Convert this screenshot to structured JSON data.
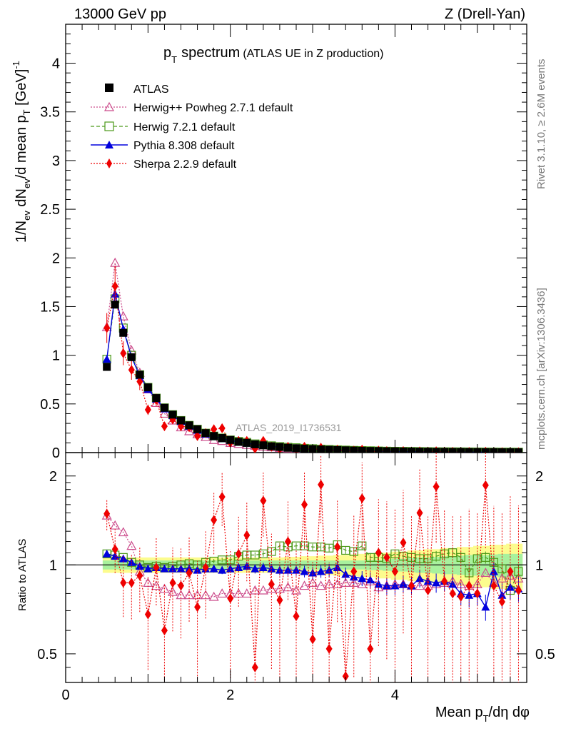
{
  "header": {
    "left": "13000 GeV pp",
    "right": "Z (Drell-Yan)"
  },
  "side_text": {
    "rivet": "Rivet 3.1.10, ≥ 2.6M events",
    "mcplots": "mcplots.cern.ch [arXiv:1306.3436]"
  },
  "watermark": "ATLAS_2019_I1736531",
  "colors": {
    "atlas": "#000000",
    "herwigpp": "#cc4c8c",
    "herwig7": "#4c9a1a",
    "pythia": "#0000dd",
    "sherpa": "#ee0000",
    "band_inner": "#9ef09e",
    "band_outer": "#fbfb7a"
  },
  "chart_data": [
    {
      "type": "line",
      "panel": "main",
      "title_main": "p",
      "title_sub": "T",
      "title_word": "spectrum",
      "title_note": "(ATLAS UE in Z production)",
      "ylabel": "1/N_ev dN_ev/d mean p_T [GeV]^-1",
      "ylabel_parts": {
        "a": "1/N",
        "a_sub": "ev",
        "b": " dN",
        "b_sub": "ev",
        "c": "/d mean p",
        "c_sub": "T",
        "d": " [GeV]",
        "d_sup": "-1"
      },
      "xlim": [
        0,
        5.6
      ],
      "ylim": [
        0,
        4.4
      ],
      "yticks": [
        0,
        0.5,
        1,
        1.5,
        2,
        2.5,
        3,
        3.5,
        4
      ],
      "ytick_labels": [
        "0",
        "0.5",
        "1",
        "1.5",
        "2",
        "2.5",
        "3",
        "3.5",
        "4"
      ],
      "legend": [
        "ATLAS",
        "Herwig++ Powheg 2.7.1 default",
        "Herwig 7.2.1 default",
        "Pythia 8.308 default",
        "Sherpa 2.2.9 default"
      ],
      "x": [
        0.5,
        0.6,
        0.7,
        0.8,
        0.9,
        1.0,
        1.1,
        1.2,
        1.3,
        1.4,
        1.5,
        1.6,
        1.7,
        1.8,
        1.9,
        2.0,
        2.1,
        2.2,
        2.3,
        2.4,
        2.5,
        2.6,
        2.7,
        2.8,
        2.9,
        3.0,
        3.1,
        3.2,
        3.3,
        3.4,
        3.5,
        3.6,
        3.7,
        3.8,
        3.9,
        4.0,
        4.1,
        4.2,
        4.3,
        4.4,
        4.5,
        4.6,
        4.7,
        4.8,
        4.9,
        5.0,
        5.1,
        5.2,
        5.3,
        5.4,
        5.5
      ],
      "atlas": [
        0.88,
        1.52,
        1.23,
        0.98,
        0.8,
        0.67,
        0.56,
        0.46,
        0.39,
        0.33,
        0.28,
        0.24,
        0.2,
        0.17,
        0.15,
        0.13,
        0.11,
        0.1,
        0.085,
        0.075,
        0.065,
        0.058,
        0.05,
        0.045,
        0.04,
        0.036,
        0.032,
        0.029,
        0.026,
        0.023,
        0.021,
        0.019,
        0.017,
        0.016,
        0.014,
        0.013,
        0.012,
        0.011,
        0.01,
        0.009,
        0.008,
        0.0075,
        0.007,
        0.0065,
        0.006,
        0.0055,
        0.005,
        0.0046,
        0.0042,
        0.0039,
        0.0036
      ],
      "series": [
        {
          "name": "Herwig++ Powheg 2.7.1 default",
          "values": [
            1.29,
            1.95,
            1.4,
            1.05,
            0.82,
            0.65,
            0.51,
            0.4,
            0.33,
            0.26,
            0.22,
            0.19,
            0.16,
            0.13,
            0.12,
            0.1,
            0.09,
            0.08,
            0.07,
            0.06,
            0.055,
            0.048,
            0.042,
            0.037,
            0.033,
            0.03,
            0.027,
            0.024,
            0.022,
            0.02,
            0.018,
            0.016,
            0.015,
            0.013,
            0.012,
            0.011,
            0.01,
            0.009,
            0.008,
            0.0075,
            0.007,
            0.0065,
            0.006,
            0.0055,
            0.005,
            0.0047,
            0.0044,
            0.004,
            0.0037,
            0.0034,
            0.0031
          ]
        },
        {
          "name": "Herwig 7.2.1 default",
          "values": [
            0.96,
            1.58,
            1.28,
            1.0,
            0.8,
            0.67,
            0.56,
            0.46,
            0.39,
            0.33,
            0.28,
            0.24,
            0.2,
            0.17,
            0.15,
            0.13,
            0.115,
            0.105,
            0.09,
            0.08,
            0.07,
            0.062,
            0.055,
            0.05,
            0.044,
            0.04,
            0.036,
            0.032,
            0.029,
            0.026,
            0.023,
            0.021,
            0.019,
            0.017,
            0.015,
            0.014,
            0.013,
            0.012,
            0.011,
            0.01,
            0.009,
            0.0085,
            0.008,
            0.0075,
            0.007,
            0.0065,
            0.006,
            0.0055,
            0.005,
            0.0047,
            0.0044
          ]
        },
        {
          "name": "Pythia 8.308 default",
          "values": [
            0.96,
            1.63,
            1.27,
            0.98,
            0.79,
            0.65,
            0.55,
            0.45,
            0.38,
            0.32,
            0.27,
            0.23,
            0.19,
            0.165,
            0.145,
            0.126,
            0.108,
            0.098,
            0.082,
            0.073,
            0.063,
            0.056,
            0.048,
            0.043,
            0.038,
            0.034,
            0.03,
            0.027,
            0.024,
            0.021,
            0.019,
            0.017,
            0.015,
            0.014,
            0.012,
            0.011,
            0.01,
            0.0095,
            0.0088,
            0.0078,
            0.0069,
            0.0064,
            0.006,
            0.0055,
            0.005,
            0.0046,
            0.0042,
            0.0039,
            0.0036,
            0.0033,
            0.003
          ]
        },
        {
          "name": "Sherpa 2.2.9 default",
          "values": [
            1.28,
            1.71,
            1.02,
            0.85,
            0.73,
            0.44,
            0.54,
            0.27,
            0.34,
            0.27,
            0.26,
            0.17,
            0.2,
            0.24,
            0.25,
            0.1,
            0.12,
            0.12,
            0.04,
            0.12,
            0.06,
            0.035,
            0.06,
            0.03,
            0.06,
            0.02,
            0.05,
            0.015,
            0.03,
            0.01,
            0.02,
            0.03,
            0.004,
            0.02,
            0.015,
            0.012,
            0.016,
            0.01,
            0.012,
            0.01,
            0.014,
            0.009,
            0.008,
            0.006,
            0.006,
            0.005,
            0.009,
            0.004,
            0.004,
            0.004,
            0.003
          ]
        }
      ]
    },
    {
      "type": "line",
      "panel": "ratio",
      "ylabel": "Ratio to ATLAS",
      "xlabel": "Mean p_T/dη dφ",
      "xlabel_parts": {
        "a": "Mean p",
        "a_sub": "T",
        "b": "/dη dφ"
      },
      "xlim": [
        0,
        5.6
      ],
      "ylim": [
        0.4,
        2.4
      ],
      "log_y": true,
      "xticks": [
        0,
        2,
        4
      ],
      "xtick_labels": [
        "0",
        "2",
        "4"
      ],
      "yticks": [
        0.5,
        1,
        2
      ],
      "ytick_labels": [
        "0.5",
        "1",
        "2"
      ],
      "x": [
        0.5,
        0.6,
        0.7,
        0.8,
        0.9,
        1.0,
        1.1,
        1.2,
        1.3,
        1.4,
        1.5,
        1.6,
        1.7,
        1.8,
        1.9,
        2.0,
        2.1,
        2.2,
        2.3,
        2.4,
        2.5,
        2.6,
        2.7,
        2.8,
        2.9,
        3.0,
        3.1,
        3.2,
        3.3,
        3.4,
        3.5,
        3.6,
        3.7,
        3.8,
        3.9,
        4.0,
        4.1,
        4.2,
        4.3,
        4.4,
        4.5,
        4.6,
        4.7,
        4.8,
        4.9,
        5.0,
        5.1,
        5.2,
        5.3,
        5.4,
        5.5
      ],
      "band_inner": [
        0.035,
        0.035,
        0.035,
        0.035,
        0.035,
        0.035,
        0.035,
        0.035,
        0.035,
        0.035,
        0.035,
        0.035,
        0.035,
        0.035,
        0.035,
        0.035,
        0.035,
        0.035,
        0.035,
        0.035,
        0.035,
        0.035,
        0.035,
        0.035,
        0.035,
        0.035,
        0.035,
        0.035,
        0.035,
        0.035,
        0.035,
        0.035,
        0.04,
        0.04,
        0.045,
        0.05,
        0.05,
        0.055,
        0.06,
        0.06,
        0.065,
        0.07,
        0.07,
        0.075,
        0.08,
        0.08,
        0.08,
        0.085,
        0.09,
        0.09,
        0.09
      ],
      "band_outer": [
        0.06,
        0.06,
        0.06,
        0.06,
        0.06,
        0.06,
        0.06,
        0.06,
        0.06,
        0.06,
        0.06,
        0.06,
        0.06,
        0.06,
        0.06,
        0.06,
        0.06,
        0.06,
        0.06,
        0.06,
        0.06,
        0.06,
        0.065,
        0.065,
        0.07,
        0.07,
        0.075,
        0.075,
        0.08,
        0.08,
        0.085,
        0.09,
        0.09,
        0.1,
        0.1,
        0.11,
        0.11,
        0.12,
        0.12,
        0.13,
        0.13,
        0.14,
        0.14,
        0.15,
        0.15,
        0.16,
        0.16,
        0.17,
        0.17,
        0.18,
        0.18
      ],
      "series": [
        {
          "name": "Herwig++ Powheg 2.7.1 default",
          "values": [
            1.47,
            1.36,
            1.29,
            1.16,
            0.95,
            0.87,
            0.85,
            0.83,
            0.81,
            0.79,
            0.79,
            0.79,
            0.79,
            0.78,
            0.8,
            0.8,
            0.8,
            0.8,
            0.82,
            0.82,
            0.83,
            0.83,
            0.84,
            0.82,
            0.85,
            0.87,
            0.85,
            0.86,
            0.86,
            0.87,
            0.87,
            0.86,
            0.88,
            0.84,
            0.85,
            0.86,
            0.86,
            0.85,
            0.85,
            0.85,
            0.86,
            0.87,
            0.88,
            0.86,
            0.85,
            0.86,
            0.94,
            0.87,
            0.9,
            0.92,
            0.9
          ]
        },
        {
          "name": "Herwig 7.2.1 default",
          "values": [
            1.09,
            1.08,
            1.06,
            1.02,
            1.0,
            0.98,
            0.99,
            0.98,
            0.99,
            1.0,
            1.01,
            1.0,
            1.02,
            1.03,
            1.04,
            1.04,
            1.07,
            1.08,
            1.08,
            1.09,
            1.11,
            1.16,
            1.15,
            1.16,
            1.16,
            1.15,
            1.15,
            1.14,
            1.17,
            1.12,
            1.11,
            1.16,
            1.06,
            1.06,
            1.05,
            1.09,
            1.07,
            1.06,
            1.05,
            1.05,
            1.07,
            1.09,
            1.1,
            1.06,
            0.94,
            1.05,
            1.06,
            1.02,
            0.97,
            0.82,
            0.95
          ]
        },
        {
          "name": "Pythia 8.308 default",
          "values": [
            1.09,
            1.07,
            1.05,
            1.02,
            0.99,
            0.97,
            0.98,
            0.97,
            0.97,
            0.97,
            0.97,
            0.96,
            0.97,
            0.97,
            0.96,
            0.97,
            0.98,
            0.99,
            0.97,
            0.98,
            0.97,
            0.96,
            0.96,
            0.96,
            0.95,
            0.94,
            0.95,
            0.96,
            0.98,
            0.93,
            0.91,
            0.9,
            0.89,
            0.86,
            0.85,
            0.85,
            0.86,
            0.85,
            0.9,
            0.88,
            0.87,
            0.88,
            0.86,
            0.8,
            0.79,
            0.8,
            0.72,
            0.95,
            0.79,
            0.84,
            0.83
          ]
        },
        {
          "name": "Sherpa 2.2.9 default",
          "values": [
            1.49,
            1.13,
            0.87,
            0.87,
            0.92,
            0.68,
            0.98,
            0.6,
            0.87,
            0.85,
            0.94,
            0.72,
            0.98,
            1.42,
            1.7,
            0.77,
            1.09,
            1.26,
            0.45,
            1.65,
            0.86,
            0.76,
            1.2,
            0.67,
            1.6,
            0.56,
            1.87,
            0.52,
            1.15,
            0.42,
            0.95,
            1.68,
            0.52,
            1.1,
            1.06,
            0.95,
            1.19,
            0.85,
            1.5,
            0.82,
            1.84,
            0.88,
            0.8,
            0.78,
            0.85,
            0.8,
            1.86,
            0.85,
            0.75,
            0.95,
            0.82
          ]
        }
      ]
    }
  ]
}
